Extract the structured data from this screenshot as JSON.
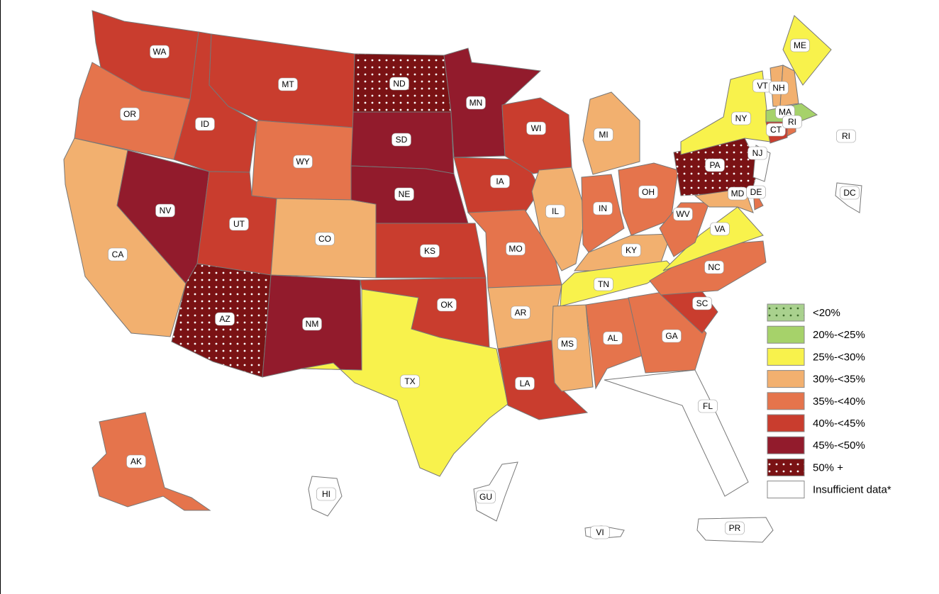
{
  "legend": {
    "items": [
      {
        "label": "<20%",
        "color": "#a9d18e",
        "pattern": "dark-dots"
      },
      {
        "label": "20%-<25%",
        "color": "#a6d26a"
      },
      {
        "label": "25%-<30%",
        "color": "#f8f24c"
      },
      {
        "label": "30%-<35%",
        "color": "#f2b06f"
      },
      {
        "label": "35%-<40%",
        "color": "#e5744c"
      },
      {
        "label": "40%-<45%",
        "color": "#c93d2e"
      },
      {
        "label": "45%-<50%",
        "color": "#921b2c"
      },
      {
        "label": "50% +",
        "color": "#7a1214",
        "pattern": "white-dots"
      },
      {
        "label": "Insufficient data*",
        "color": "#ffffff"
      }
    ]
  },
  "states": [
    {
      "label": "WA",
      "color": "#c93d2e"
    },
    {
      "label": "OR",
      "color": "#e5744c"
    },
    {
      "label": "CA",
      "color": "#f2b06f"
    },
    {
      "label": "NV",
      "color": "#921b2c"
    },
    {
      "label": "ID",
      "color": "#c93d2e"
    },
    {
      "label": "MT",
      "color": "#c93d2e"
    },
    {
      "label": "WY",
      "color": "#e5744c"
    },
    {
      "label": "UT",
      "color": "#c93d2e"
    },
    {
      "label": "CO",
      "color": "#f2b06f"
    },
    {
      "label": "AZ",
      "color": "#7a1214",
      "pattern": "white-dots"
    },
    {
      "label": "NM",
      "color": "#921b2c"
    },
    {
      "label": "ND",
      "color": "#7a1214",
      "pattern": "white-dots"
    },
    {
      "label": "SD",
      "color": "#921b2c"
    },
    {
      "label": "NE",
      "color": "#921b2c"
    },
    {
      "label": "KS",
      "color": "#c93d2e"
    },
    {
      "label": "OK",
      "color": "#c93d2e"
    },
    {
      "label": "TX",
      "color": "#f8f24c"
    },
    {
      "label": "MN",
      "color": "#921b2c"
    },
    {
      "label": "IA",
      "color": "#c93d2e"
    },
    {
      "label": "MO",
      "color": "#e5744c"
    },
    {
      "label": "AR",
      "color": "#f2b06f"
    },
    {
      "label": "LA",
      "color": "#c93d2e"
    },
    {
      "label": "WI",
      "color": "#c93d2e"
    },
    {
      "label": "IL",
      "color": "#f2b06f"
    },
    {
      "label": "MI",
      "color": "#f2b06f"
    },
    {
      "label": "IN",
      "color": "#e5744c"
    },
    {
      "label": "OH",
      "color": "#e5744c"
    },
    {
      "label": "KY",
      "color": "#f2b06f"
    },
    {
      "label": "TN",
      "color": "#f8f24c"
    },
    {
      "label": "MS",
      "color": "#f2b06f"
    },
    {
      "label": "AL",
      "color": "#e5744c"
    },
    {
      "label": "GA",
      "color": "#e5744c"
    },
    {
      "label": "FL",
      "color": "#ffffff"
    },
    {
      "label": "SC",
      "color": "#c93d2e"
    },
    {
      "label": "NC",
      "color": "#e5744c"
    },
    {
      "label": "VA",
      "color": "#f8f24c"
    },
    {
      "label": "WV",
      "color": "#e5744c"
    },
    {
      "label": "PA",
      "color": "#7a1214",
      "pattern": "white-dots"
    },
    {
      "label": "NY",
      "color": "#f8f24c"
    },
    {
      "label": "NJ",
      "color": "#ffffff"
    },
    {
      "label": "MD",
      "color": "#f2b06f"
    },
    {
      "label": "DE",
      "color": "#e5744c"
    },
    {
      "label": "VT",
      "color": "#f2b06f"
    },
    {
      "label": "NH",
      "color": "#f2b06f"
    },
    {
      "label": "ME",
      "color": "#f8f24c"
    },
    {
      "label": "MA",
      "color": "#a6d26a"
    },
    {
      "label": "CT",
      "color": "#c93d2e"
    },
    {
      "label": "RI",
      "color": "#e5744c"
    },
    {
      "label": "AK",
      "color": "#e5744c"
    },
    {
      "label": "HI",
      "color": "#ffffff"
    },
    {
      "label": "DC",
      "color": "#ffffff"
    },
    {
      "label": "GU",
      "color": "#ffffff"
    },
    {
      "label": "VI",
      "color": "#ffffff"
    },
    {
      "label": "PR",
      "color": "#ffffff"
    }
  ]
}
